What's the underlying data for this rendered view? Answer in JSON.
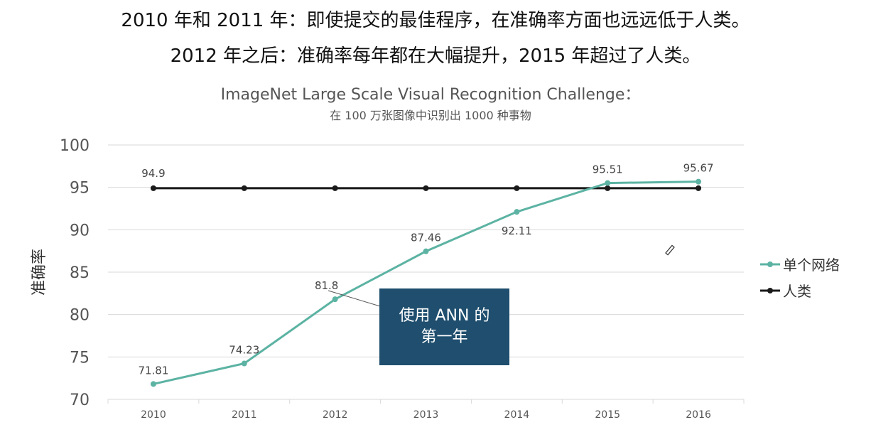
{
  "header": {
    "line1": "2010 年和 2011 年：即使提交的最佳程序，在准确率方面也远远低于人类。",
    "line2": "2012 年之后：准确率每年都在大幅提升，2015 年超过了人类。"
  },
  "callout": {
    "line1": "使用 ANN 的",
    "line2": "第一年"
  },
  "colors": {
    "network": "#5cb3a3",
    "human": "#1a1a1a",
    "callout_bg": "#1f4e6e"
  },
  "chart_data": {
    "type": "line",
    "title": "ImageNet Large Scale Visual Recognition Challenge：",
    "subtitle": "在 100 万张图像中识别出 1000 种事物",
    "ylabel": "准确率",
    "xlabel": "",
    "categories": [
      "2010",
      "2011",
      "2012",
      "2013",
      "2014",
      "2015",
      "2016"
    ],
    "ylim": [
      70,
      100
    ],
    "yticks": [
      100,
      95,
      90,
      85,
      80,
      75,
      70
    ],
    "grid": true,
    "legend_position": "right",
    "series": [
      {
        "name": "单个网络",
        "values": [
          71.81,
          74.23,
          81.8,
          87.46,
          92.11,
          95.51,
          95.67
        ],
        "labels": [
          "71.81",
          "74.23",
          "81.8",
          "87.46",
          "92.11",
          "95.51",
          "95.67"
        ]
      },
      {
        "name": "人类",
        "values": [
          94.9,
          94.9,
          94.9,
          94.9,
          94.9,
          94.9,
          94.9
        ],
        "labels": [
          "94.9"
        ]
      }
    ]
  }
}
